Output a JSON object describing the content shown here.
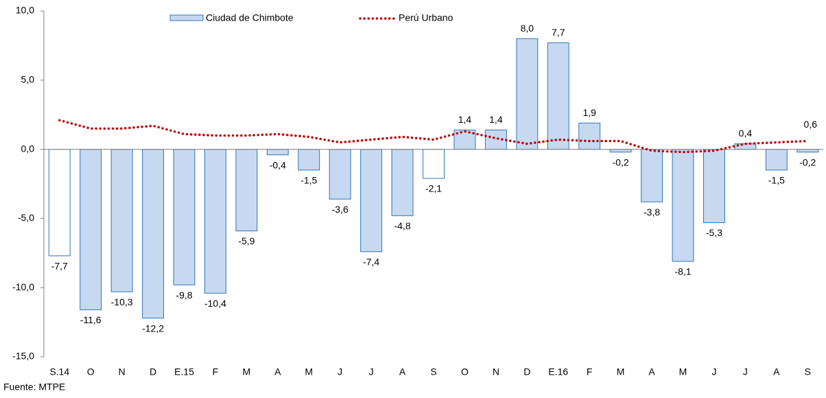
{
  "chart_data": {
    "type": "bar_line",
    "source": "Fuente: MTPE",
    "categories": [
      "S.14",
      "O",
      "N",
      "D",
      "E.15",
      "F",
      "M",
      "A",
      "M",
      "J",
      "J",
      "A",
      "S",
      "O",
      "N",
      "D",
      "E.16",
      "F",
      "M",
      "A",
      "M",
      "J",
      "J",
      "A",
      "S"
    ],
    "series": [
      {
        "name": "Ciudad de Chimbote",
        "type": "bar",
        "color": "#c6d9f1",
        "edge_color": "#2e75b6",
        "colors": [
          "#ffffff",
          "#c6d9f1",
          "#c6d9f1",
          "#c6d9f1",
          "#c6d9f1",
          "#c6d9f1",
          "#c6d9f1",
          "#c6d9f1",
          "#c6d9f1",
          "#c6d9f1",
          "#c6d9f1",
          "#c6d9f1",
          "#ffffff",
          "#c6d9f1",
          "#c6d9f1",
          "#c6d9f1",
          "#c6d9f1",
          "#c6d9f1",
          "#c6d9f1",
          "#c6d9f1",
          "#c6d9f1",
          "#c6d9f1",
          "#c6d9f1",
          "#c6d9f1",
          "#c6d9f1"
        ],
        "values": [
          -7.7,
          -11.6,
          -10.3,
          -12.2,
          -9.8,
          -10.4,
          -5.9,
          -0.4,
          -1.5,
          -3.6,
          -7.4,
          -4.8,
          -2.1,
          1.4,
          1.4,
          8.0,
          7.7,
          1.9,
          -0.2,
          -3.8,
          -8.1,
          -5.3,
          0.4,
          -1.5,
          -0.2
        ],
        "value_labels": [
          "-7,7",
          "-11,6",
          "-10,3",
          "-12,2",
          "-9,8",
          "-10,4",
          "-5,9",
          "-0,4",
          "-1,5",
          "-3,6",
          "-7,4",
          "-4,8",
          "-2,1",
          "1,4",
          "1,4",
          "8,0",
          "7,7",
          "1,9",
          "-0,2",
          "-3,8",
          "-8,1",
          "-5,3",
          "0,4",
          "-1,5",
          "-0,2"
        ]
      },
      {
        "name": "Perú Urbano",
        "type": "line",
        "color": "#c00000",
        "values": [
          2.1,
          1.5,
          1.5,
          1.7,
          1.1,
          1.0,
          1.0,
          1.1,
          0.9,
          0.5,
          0.7,
          0.9,
          0.7,
          1.3,
          0.8,
          0.4,
          0.7,
          0.6,
          0.6,
          -0.1,
          -0.2,
          -0.1,
          0.4,
          0.5,
          0.6
        ],
        "value_labels": [
          null,
          null,
          null,
          null,
          null,
          null,
          null,
          null,
          null,
          null,
          null,
          null,
          null,
          null,
          null,
          null,
          null,
          null,
          null,
          null,
          null,
          null,
          null,
          null,
          "0,6"
        ]
      }
    ],
    "ylim": [
      -15,
      10
    ],
    "yticks": [
      {
        "value": -15,
        "label": "-15,0"
      },
      {
        "value": -10,
        "label": "-10,0"
      },
      {
        "value": -5,
        "label": "-5,0"
      },
      {
        "value": 0,
        "label": "0,0"
      },
      {
        "value": 5,
        "label": "5,0"
      },
      {
        "value": 10,
        "label": "10,0"
      }
    ],
    "legend": "top"
  }
}
